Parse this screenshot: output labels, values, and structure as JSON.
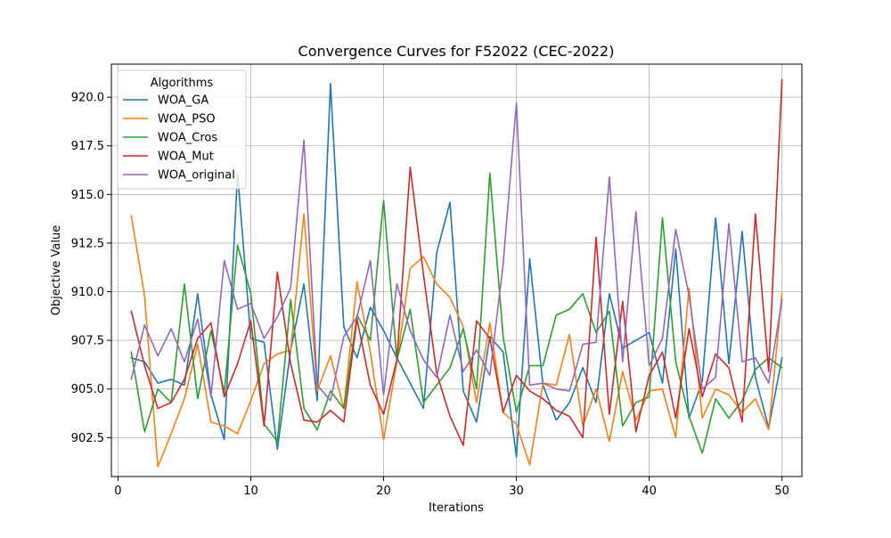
{
  "chart_data": {
    "type": "line",
    "title": "Convergence Curves for F52022 (CEC-2022)",
    "xlabel": "Iterations",
    "ylabel": "Objective Value",
    "xlim": [
      -0.5,
      51.5
    ],
    "ylim": [
      900.5,
      921.7
    ],
    "xticks": [
      0,
      10,
      20,
      30,
      40,
      50
    ],
    "xtick_labels": [
      "0",
      "10",
      "20",
      "30",
      "40",
      "50"
    ],
    "yticks": [
      902.5,
      905.0,
      907.5,
      910.0,
      912.5,
      915.0,
      917.5,
      920.0
    ],
    "ytick_labels": [
      "902.5",
      "905.0",
      "907.5",
      "910.0",
      "912.5",
      "915.0",
      "917.5",
      "920.0"
    ],
    "grid": true,
    "legend": {
      "title": "Algorithms",
      "placement": "top-left"
    },
    "x": [
      1,
      2,
      3,
      4,
      5,
      6,
      7,
      8,
      9,
      10,
      11,
      12,
      13,
      14,
      15,
      16,
      17,
      18,
      19,
      20,
      21,
      22,
      23,
      24,
      25,
      26,
      27,
      28,
      29,
      30,
      31,
      32,
      33,
      34,
      35,
      36,
      37,
      38,
      39,
      40,
      41,
      42,
      43,
      44,
      45,
      46,
      47,
      48,
      49,
      50
    ],
    "series": [
      {
        "name": "WOA_GA",
        "color": "#1f77b4",
        "values": [
          906.6,
          906.4,
          905.3,
          905.5,
          905.2,
          909.9,
          904.7,
          902.4,
          916.1,
          907.6,
          907.4,
          901.9,
          907.0,
          910.4,
          904.4,
          920.7,
          908.2,
          906.6,
          909.2,
          908.0,
          906.6,
          905.3,
          904.0,
          912.0,
          914.6,
          904.9,
          903.3,
          907.7,
          906.9,
          901.5,
          911.7,
          905.2,
          903.4,
          904.3,
          906.1,
          904.3,
          909.9,
          907.1,
          907.5,
          907.9,
          905.3,
          912.2,
          903.5,
          905.4,
          913.8,
          906.3,
          913.1,
          905.6,
          903.0,
          906.6
        ]
      },
      {
        "name": "WOA_PSO",
        "color": "#ff7f0e",
        "values": [
          913.9,
          909.8,
          901.0,
          902.7,
          904.5,
          907.3,
          903.3,
          903.1,
          902.7,
          904.4,
          906.3,
          906.8,
          907.0,
          914.0,
          904.9,
          906.7,
          904.0,
          910.5,
          906.9,
          902.4,
          906.4,
          911.2,
          911.8,
          910.4,
          909.7,
          908.2,
          904.3,
          908.4,
          903.8,
          903.2,
          901.1,
          905.3,
          905.2,
          907.8,
          903.1,
          905.0,
          902.3,
          905.9,
          903.4,
          904.9,
          905.0,
          902.5,
          910.2,
          903.5,
          905.0,
          904.7,
          903.8,
          904.5,
          902.9,
          909.9
        ]
      },
      {
        "name": "WOA_Cros",
        "color": "#2ca02c",
        "values": [
          906.9,
          902.8,
          905.0,
          904.3,
          910.4,
          904.5,
          908.0,
          904.8,
          912.4,
          909.9,
          903.2,
          902.3,
          909.6,
          904.0,
          902.9,
          904.9,
          904.0,
          908.8,
          907.5,
          914.7,
          906.5,
          909.1,
          904.3,
          905.2,
          906.1,
          908.1,
          905.0,
          916.1,
          907.7,
          903.8,
          906.2,
          906.2,
          908.8,
          909.1,
          909.9,
          907.9,
          909.0,
          903.1,
          904.3,
          904.6,
          913.8,
          906.4,
          903.6,
          901.7,
          904.5,
          903.5,
          904.4,
          906.0,
          906.6,
          906.1
        ]
      },
      {
        "name": "WOA_Mut",
        "color": "#d62728",
        "values": [
          909.0,
          906.2,
          904.0,
          904.3,
          905.5,
          907.6,
          908.4,
          904.6,
          906.3,
          908.5,
          903.1,
          911.0,
          906.3,
          903.4,
          903.3,
          903.9,
          903.3,
          908.6,
          905.2,
          903.7,
          906.5,
          916.4,
          910.9,
          905.8,
          903.6,
          902.1,
          908.5,
          907.6,
          903.8,
          905.7,
          904.9,
          904.5,
          903.9,
          903.6,
          902.5,
          912.8,
          903.7,
          909.5,
          902.8,
          905.7,
          906.9,
          903.5,
          908.1,
          904.6,
          906.8,
          906.1,
          903.3,
          914.0,
          905.9,
          920.9
        ]
      },
      {
        "name": "WOA_original",
        "color": "#9467bd",
        "values": [
          905.5,
          908.3,
          906.7,
          908.1,
          906.4,
          908.6,
          904.6,
          911.6,
          909.1,
          909.4,
          907.6,
          908.7,
          910.2,
          917.8,
          905.2,
          904.4,
          907.7,
          908.7,
          911.6,
          904.7,
          910.4,
          908.0,
          906.5,
          905.6,
          908.8,
          905.9,
          907.0,
          905.7,
          911.4,
          919.7,
          905.2,
          905.3,
          905.0,
          904.9,
          907.3,
          907.4,
          915.9,
          906.4,
          914.1,
          906.2,
          907.6,
          913.2,
          909.8,
          905.0,
          905.6,
          913.5,
          906.4,
          906.6,
          905.3,
          909.6
        ]
      }
    ]
  }
}
